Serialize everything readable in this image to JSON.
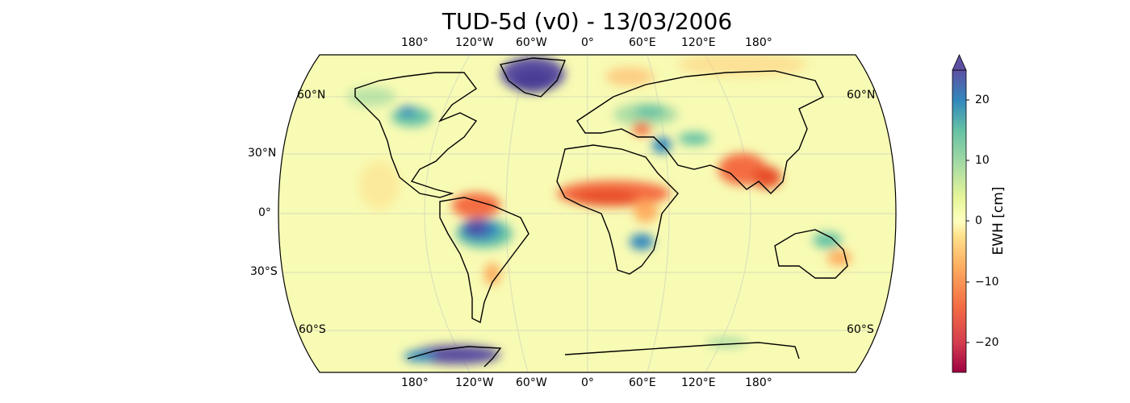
{
  "title": "TUD-5d (v0) - 13/03/2006",
  "lon_labels": [
    "180°",
    "120°W",
    "60°W",
    "0°",
    "60°E",
    "120°E",
    "180°"
  ],
  "lat_labels_left": [
    "60°N",
    "30°N",
    "0°",
    "30°S",
    "60°S"
  ],
  "lat_labels_right": [
    "60°N",
    "60°S"
  ],
  "colorbar": {
    "label": "EWH [cm]",
    "ticks": [
      "20",
      "10",
      "0",
      "−10",
      "−20"
    ],
    "min": -25,
    "max": 25,
    "extend": "max",
    "colormap": "Spectral"
  },
  "map": {
    "projection": "Robinson",
    "background_color": "#f7fbb0",
    "coastline_color": "#000000",
    "anomalies": [
      {
        "region": "Greenland",
        "sign": "positive",
        "color": "#5b4fa0"
      },
      {
        "region": "Amazon",
        "sign": "positive",
        "color": "#4f4fa6"
      },
      {
        "region": "West Antarctica",
        "sign": "positive",
        "color": "#5b4fa0"
      },
      {
        "region": "Sahel",
        "sign": "negative",
        "color": "#f06a42"
      },
      {
        "region": "SE Asia",
        "sign": "negative",
        "color": "#f06a42"
      },
      {
        "region": "Northern South America",
        "sign": "negative",
        "color": "#f06a42"
      },
      {
        "region": "Southern Africa",
        "sign": "positive",
        "color": "#3b82bf"
      }
    ]
  }
}
